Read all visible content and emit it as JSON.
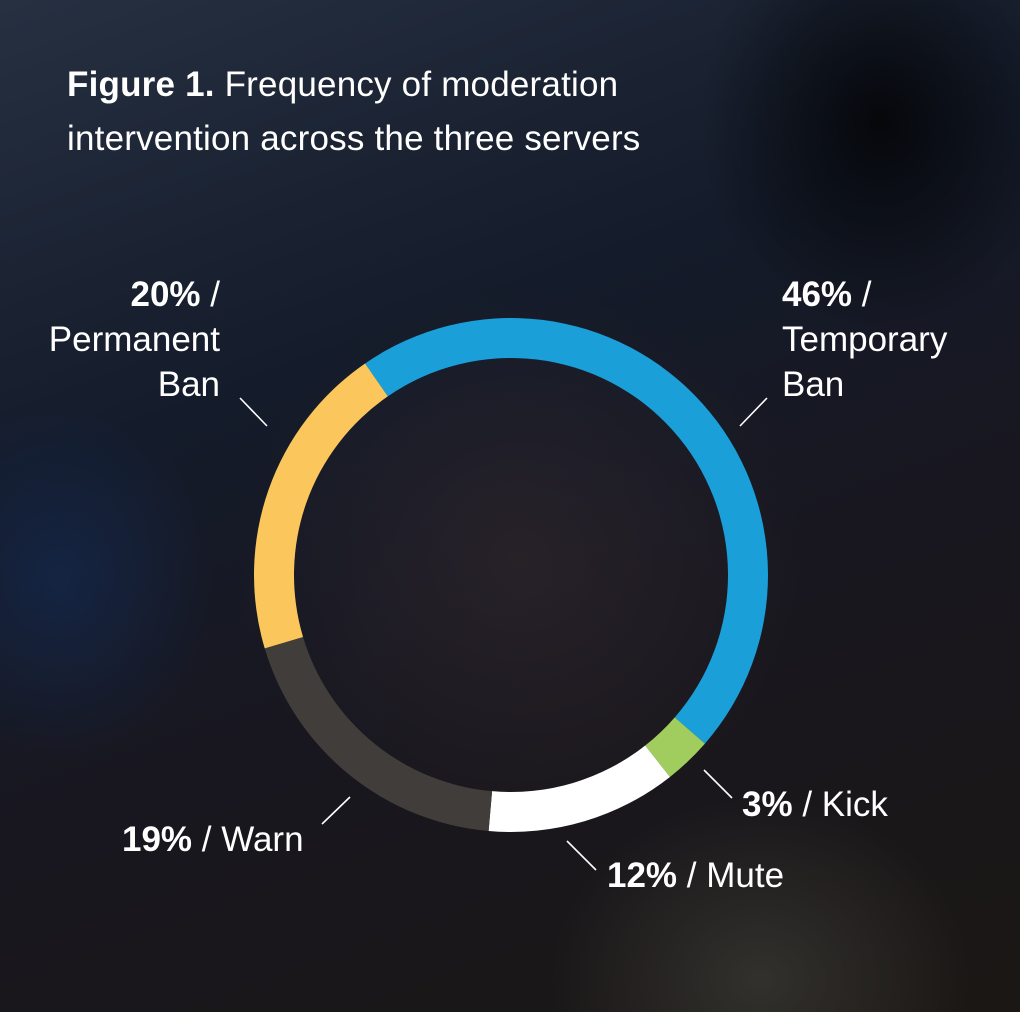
{
  "figure": {
    "title_bold": "Figure 1.",
    "title_rest": " Frequency of moderation intervention across the three servers"
  },
  "labels": {
    "temporary_ban": {
      "pct": "46%",
      "sep": " /",
      "line1": "Temporary",
      "line2": "Ban"
    },
    "kick": {
      "pct": "3%",
      "rest": " / Kick"
    },
    "mute": {
      "pct": "12%",
      "rest": " / Mute"
    },
    "warn": {
      "pct": "19%",
      "rest": " / Warn"
    },
    "permanent_ban": {
      "pct": "20%",
      "sep": " /",
      "line1": "Permanent",
      "line2": "Ban"
    }
  },
  "colors": {
    "temporary_ban": "#1b9fd9",
    "kick": "#a0cd5e",
    "mute": "#ffffff",
    "warn": "#413d3a",
    "permanent_ban": "#fbc75c"
  },
  "chart_data": {
    "type": "pie",
    "subtype": "donut",
    "title": "Figure 1. Frequency of moderation intervention across the three servers",
    "categories": [
      "Temporary Ban",
      "Kick",
      "Mute",
      "Warn",
      "Permanent Ban"
    ],
    "values": [
      46,
      3,
      12,
      19,
      20
    ],
    "unit": "%",
    "colors": [
      "#1b9fd9",
      "#a0cd5e",
      "#ffffff",
      "#413d3a",
      "#fbc75c"
    ],
    "start_angle_deg_from_top": -34.6,
    "direction": "clockwise",
    "legend": "none (inline callout labels)"
  }
}
